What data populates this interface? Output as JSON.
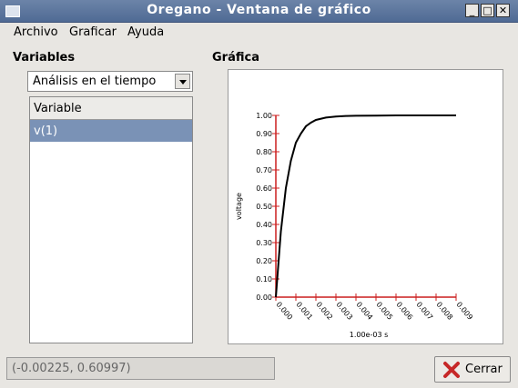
{
  "window": {
    "title": "Oregano - Ventana de gráfico"
  },
  "menu": {
    "items": [
      "Archivo",
      "Graficar",
      "Ayuda"
    ]
  },
  "left": {
    "title": "Variables",
    "analysis_select": "Análisis en el tiempo",
    "list_header": "Variable",
    "rows": [
      "v(1)"
    ]
  },
  "right": {
    "title": "Gráfica"
  },
  "chart_data": {
    "type": "line",
    "ylabel": "voltage",
    "xlabel": "1.00e-03 s",
    "xlim": [
      0,
      0.009
    ],
    "ylim": [
      0,
      1.0
    ],
    "x_ticks": [
      "0.000",
      "0.001",
      "0.002",
      "0.003",
      "0.004",
      "0.005",
      "0.006",
      "0.007",
      "0.008",
      "0.009"
    ],
    "y_ticks": [
      "0.00",
      "0.10",
      "0.20",
      "0.30",
      "0.40",
      "0.50",
      "0.60",
      "0.70",
      "0.80",
      "0.90",
      "1.00"
    ],
    "series": [
      {
        "x": [
          0,
          0.00025,
          0.0005,
          0.00075,
          0.001,
          0.00125,
          0.0015,
          0.00175,
          0.002,
          0.0025,
          0.003,
          0.0035,
          0.004,
          0.005,
          0.006,
          0.007,
          0.008,
          0.009
        ],
        "y": [
          0,
          0.36,
          0.6,
          0.75,
          0.85,
          0.9,
          0.94,
          0.96,
          0.975,
          0.988,
          0.994,
          0.997,
          0.998,
          0.999,
          1.0,
          1.0,
          1.0,
          1.0
        ]
      }
    ],
    "colors": {
      "axis": "#cc1f1f",
      "line": "#000000"
    }
  },
  "statusbar": {
    "coords": "(-0.00225, 0.60997)"
  },
  "buttons": {
    "close": "Cerrar"
  }
}
